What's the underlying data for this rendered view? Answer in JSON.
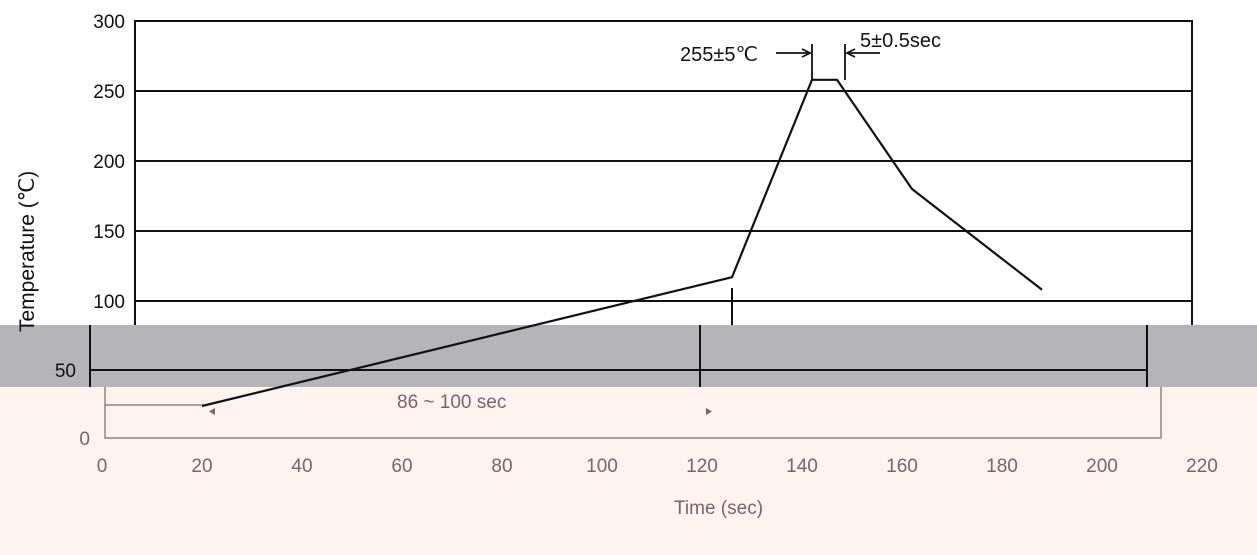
{
  "chart_data": {
    "type": "line",
    "title": "",
    "xlabel": "Time  (sec)",
    "ylabel": "Temperature (℃)",
    "xlim": [
      0,
      220
    ],
    "ylim": [
      0,
      300
    ],
    "x_ticks": [
      "0",
      "20",
      "40",
      "60",
      "80",
      "100",
      "120",
      "140",
      "160",
      "180",
      "200",
      "220"
    ],
    "y_ticks": [
      "0",
      "50",
      "100",
      "150",
      "200",
      "250",
      "300"
    ],
    "grid": "horizontal",
    "series": [
      {
        "x": [
          20,
          126,
          142,
          147,
          162,
          188
        ],
        "y": [
          25,
          117,
          258,
          258,
          180,
          108
        ]
      }
    ],
    "annotations": {
      "peak_temp": "255±5℃",
      "peak_time": "5±0.5sec",
      "preheat_duration": "86 ~ 100 sec"
    }
  }
}
